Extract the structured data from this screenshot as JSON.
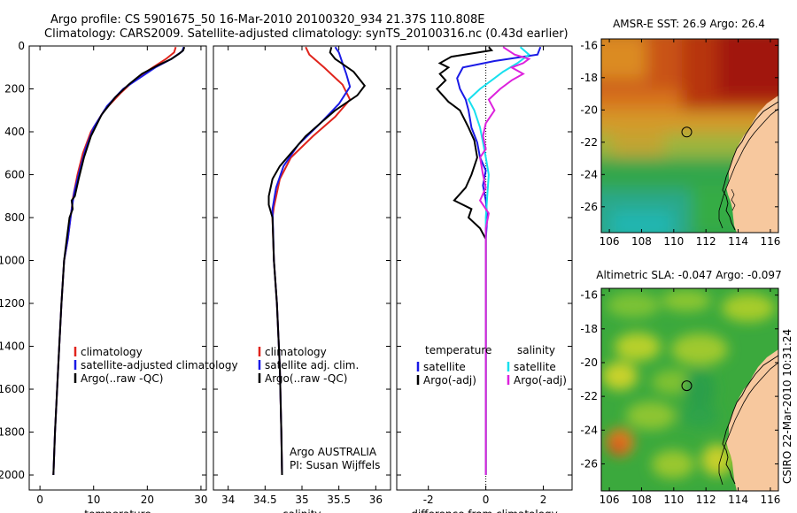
{
  "title_line1": "Argo profile: CS 5901675_50 16-Mar-2010 20100320_934 21.37S 110.808E",
  "title_line2": "Climatology: CARS2009. Satellite-adjusted climatology: synTS_20100316.nc (0.43d earlier)",
  "side_label": "CSIRO 22-Mar-2010 10:31:24",
  "colors": {
    "red": "#e0241c",
    "blue": "#1a1ae6",
    "black": "#000000",
    "cyan": "#18e0ee",
    "magenta": "#dd22dd"
  },
  "chart_data": [
    {
      "type": "line",
      "name": "temperature",
      "xlabel": "temperature",
      "xlim": [
        -2,
        31
      ],
      "ylim": [
        0,
        2070
      ],
      "xticks": [
        0,
        10,
        20,
        30
      ],
      "yticks": [
        0,
        200,
        400,
        600,
        800,
        1000,
        1200,
        1400,
        1600,
        1800,
        2000
      ],
      "legend": [
        "climatology",
        "satellite-adjusted climatology",
        "Argo(..raw -QC)"
      ],
      "series": [
        {
          "name": "climatology",
          "color": "red",
          "points": [
            [
              25.3,
              5
            ],
            [
              25.0,
              30
            ],
            [
              23.5,
              60
            ],
            [
              21.0,
              100
            ],
            [
              18.0,
              150
            ],
            [
              15.0,
              220
            ],
            [
              12.0,
              300
            ],
            [
              9.5,
              400
            ],
            [
              8.0,
              500
            ],
            [
              7.0,
              600
            ],
            [
              6.2,
              700
            ],
            [
              5.8,
              780
            ],
            [
              5.2,
              900
            ],
            [
              4.5,
              1000
            ],
            [
              4.0,
              1200
            ],
            [
              3.6,
              1400
            ],
            [
              3.2,
              1600
            ],
            [
              2.8,
              1800
            ],
            [
              2.5,
              2000
            ]
          ]
        },
        {
          "name": "satellite-adjusted climatology",
          "color": "blue",
          "points": [
            [
              26.8,
              5
            ],
            [
              26.5,
              25
            ],
            [
              24.5,
              60
            ],
            [
              21.5,
              100
            ],
            [
              18.5,
              150
            ],
            [
              15.5,
              200
            ],
            [
              12.5,
              280
            ],
            [
              10.0,
              380
            ],
            [
              8.5,
              480
            ],
            [
              7.4,
              580
            ],
            [
              6.4,
              680
            ],
            [
              5.8,
              780
            ],
            [
              5.2,
              900
            ],
            [
              4.5,
              1000
            ],
            [
              4.0,
              1200
            ],
            [
              3.6,
              1400
            ],
            [
              3.2,
              1600
            ],
            [
              2.8,
              1800
            ],
            [
              2.5,
              2000
            ]
          ]
        },
        {
          "name": "Argo(..raw -QC)",
          "color": "black",
          "points": [
            [
              26.9,
              5
            ],
            [
              26.7,
              20
            ],
            [
              26.0,
              35
            ],
            [
              24.5,
              60
            ],
            [
              22.0,
              90
            ],
            [
              19.0,
              130
            ],
            [
              16.5,
              180
            ],
            [
              14.0,
              240
            ],
            [
              11.5,
              320
            ],
            [
              9.5,
              420
            ],
            [
              8.2,
              520
            ],
            [
              7.2,
              620
            ],
            [
              6.5,
              700
            ],
            [
              5.9,
              720
            ],
            [
              6.1,
              760
            ],
            [
              5.5,
              800
            ],
            [
              5.0,
              900
            ],
            [
              4.5,
              1000
            ],
            [
              4.0,
              1200
            ],
            [
              3.6,
              1400
            ],
            [
              3.2,
              1600
            ],
            [
              2.8,
              1800
            ],
            [
              2.5,
              2000
            ]
          ]
        }
      ]
    },
    {
      "type": "line",
      "name": "salinity",
      "xlabel": "salinity",
      "xlim": [
        33.8,
        36.2
      ],
      "ylim": [
        0,
        2070
      ],
      "xticks": [
        34,
        34.5,
        35,
        35.5,
        36
      ],
      "legend": [
        "climatology",
        "satellite adj. clim.",
        "Argo(..raw -QC)"
      ],
      "annotation": [
        "Argo AUSTRALIA",
        "PI: Susan Wijffels"
      ],
      "series": [
        {
          "name": "climatology",
          "color": "red",
          "points": [
            [
              35.05,
              5
            ],
            [
              35.1,
              40
            ],
            [
              35.3,
              100
            ],
            [
              35.55,
              180
            ],
            [
              35.65,
              250
            ],
            [
              35.45,
              330
            ],
            [
              35.15,
              420
            ],
            [
              34.85,
              520
            ],
            [
              34.7,
              620
            ],
            [
              34.62,
              750
            ],
            [
              34.6,
              800
            ],
            [
              34.62,
              1000
            ],
            [
              34.66,
              1200
            ],
            [
              34.7,
              1500
            ],
            [
              34.72,
              1800
            ],
            [
              34.73,
              2000
            ]
          ]
        },
        {
          "name": "satellite adj. clim.",
          "color": "blue",
          "points": [
            [
              35.45,
              5
            ],
            [
              35.5,
              30
            ],
            [
              35.55,
              80
            ],
            [
              35.6,
              130
            ],
            [
              35.65,
              190
            ],
            [
              35.5,
              270
            ],
            [
              35.25,
              360
            ],
            [
              34.95,
              460
            ],
            [
              34.75,
              560
            ],
            [
              34.65,
              660
            ],
            [
              34.6,
              760
            ],
            [
              34.62,
              1000
            ],
            [
              34.66,
              1200
            ],
            [
              34.7,
              1500
            ],
            [
              34.72,
              1800
            ],
            [
              34.73,
              2000
            ]
          ]
        },
        {
          "name": "Argo(..raw -QC)",
          "color": "black",
          "points": [
            [
              35.4,
              5
            ],
            [
              35.38,
              30
            ],
            [
              35.45,
              60
            ],
            [
              35.7,
              120
            ],
            [
              35.85,
              185
            ],
            [
              35.75,
              230
            ],
            [
              35.45,
              300
            ],
            [
              35.25,
              360
            ],
            [
              35.05,
              420
            ],
            [
              34.85,
              500
            ],
            [
              34.7,
              560
            ],
            [
              34.6,
              620
            ],
            [
              34.55,
              700
            ],
            [
              34.55,
              740
            ],
            [
              34.6,
              800
            ],
            [
              34.62,
              1000
            ],
            [
              34.66,
              1200
            ],
            [
              34.7,
              1500
            ],
            [
              34.72,
              1800
            ],
            [
              34.73,
              2000
            ]
          ]
        }
      ]
    },
    {
      "type": "line",
      "name": "difference from climatology",
      "xlabel": "difference from climatology",
      "xlim": [
        -3.1,
        3.0
      ],
      "ylim": [
        0,
        2070
      ],
      "xticks": [
        -2,
        0,
        2
      ],
      "zero_line": true,
      "legend_headers": [
        "temperature",
        "salinity"
      ],
      "legend": [
        "satellite",
        "Argo(-adj)",
        "satellite",
        "Argo(-adj)"
      ],
      "series": [
        {
          "name": "temperature satellite",
          "color": "blue",
          "points": [
            [
              1.9,
              5
            ],
            [
              1.8,
              40
            ],
            [
              0.3,
              70
            ],
            [
              -0.8,
              100
            ],
            [
              -1.0,
              150
            ],
            [
              -0.9,
              200
            ],
            [
              -0.7,
              250
            ],
            [
              -0.6,
              300
            ],
            [
              -0.5,
              380
            ],
            [
              -0.3,
              450
            ],
            [
              -0.2,
              520
            ],
            [
              0.0,
              580
            ],
            [
              -0.1,
              650
            ],
            [
              0.0,
              720
            ],
            [
              0.05,
              800
            ],
            [
              0.0,
              900
            ],
            [
              0.0,
              1200
            ],
            [
              0.0,
              1600
            ],
            [
              0.0,
              2000
            ]
          ]
        },
        {
          "name": "temperature Argo(-adj)",
          "color": "black",
          "points": [
            [
              0.1,
              5
            ],
            [
              0.2,
              20
            ],
            [
              -1.2,
              50
            ],
            [
              -1.6,
              80
            ],
            [
              -1.3,
              100
            ],
            [
              -1.6,
              130
            ],
            [
              -1.4,
              160
            ],
            [
              -1.7,
              200
            ],
            [
              -1.5,
              230
            ],
            [
              -1.3,
              260
            ],
            [
              -0.9,
              300
            ],
            [
              -0.6,
              380
            ],
            [
              -0.4,
              440
            ],
            [
              -0.3,
              520
            ],
            [
              -0.5,
              600
            ],
            [
              -0.7,
              660
            ],
            [
              -1.1,
              720
            ],
            [
              -0.5,
              760
            ],
            [
              -0.6,
              800
            ],
            [
              -0.2,
              850
            ],
            [
              0.0,
              900
            ],
            [
              0.0,
              1200
            ],
            [
              0.0,
              1600
            ],
            [
              0.0,
              2000
            ]
          ]
        },
        {
          "name": "salinity satellite",
          "color": "cyan",
          "points": [
            [
              1.2,
              5
            ],
            [
              1.5,
              40
            ],
            [
              1.1,
              80
            ],
            [
              0.6,
              120
            ],
            [
              0.3,
              150
            ],
            [
              -0.2,
              200
            ],
            [
              -0.6,
              250
            ],
            [
              -0.4,
              300
            ],
            [
              -0.2,
              380
            ],
            [
              -0.1,
              450
            ],
            [
              0.0,
              520
            ],
            [
              0.1,
              600
            ],
            [
              0.05,
              700
            ],
            [
              0.0,
              800
            ],
            [
              0.0,
              1000
            ],
            [
              0.0,
              1400
            ],
            [
              0.0,
              2000
            ]
          ]
        },
        {
          "name": "salinity Argo(-adj)",
          "color": "magenta",
          "points": [
            [
              0.6,
              5
            ],
            [
              1.0,
              40
            ],
            [
              1.5,
              60
            ],
            [
              1.3,
              80
            ],
            [
              0.9,
              100
            ],
            [
              1.3,
              130
            ],
            [
              0.9,
              160
            ],
            [
              0.5,
              200
            ],
            [
              0.1,
              250
            ],
            [
              0.3,
              300
            ],
            [
              0.0,
              360
            ],
            [
              -0.1,
              420
            ],
            [
              0.0,
              480
            ],
            [
              -0.2,
              520
            ],
            [
              -0.1,
              600
            ],
            [
              0.0,
              660
            ],
            [
              -0.2,
              720
            ],
            [
              0.1,
              780
            ],
            [
              0.0,
              850
            ],
            [
              0.0,
              1000
            ],
            [
              0.0,
              1400
            ],
            [
              0.0,
              2000
            ]
          ]
        }
      ]
    },
    {
      "type": "heatmap",
      "name": "AMSR-E SST map",
      "title": "AMSR-E SST: 26.9 Argo: 26.4",
      "xlim": [
        105.5,
        116.5
      ],
      "ylim": [
        -27.6,
        -15.6
      ],
      "xticks": [
        106,
        108,
        110,
        112,
        114,
        116
      ],
      "yticks": [
        -16,
        -18,
        -20,
        -22,
        -24,
        -26
      ],
      "marker": {
        "lon": 110.808,
        "lat": -21.37
      }
    },
    {
      "type": "heatmap",
      "name": "Altimetric SLA map",
      "title": "Altimetric SLA: -0.047 Argo: -0.097",
      "xlim": [
        105.5,
        116.5
      ],
      "ylim": [
        -27.6,
        -15.6
      ],
      "xticks": [
        106,
        108,
        110,
        112,
        114,
        116
      ],
      "yticks": [
        -16,
        -18,
        -20,
        -22,
        -24,
        -26
      ],
      "marker": {
        "lon": 110.808,
        "lat": -21.37
      }
    }
  ]
}
